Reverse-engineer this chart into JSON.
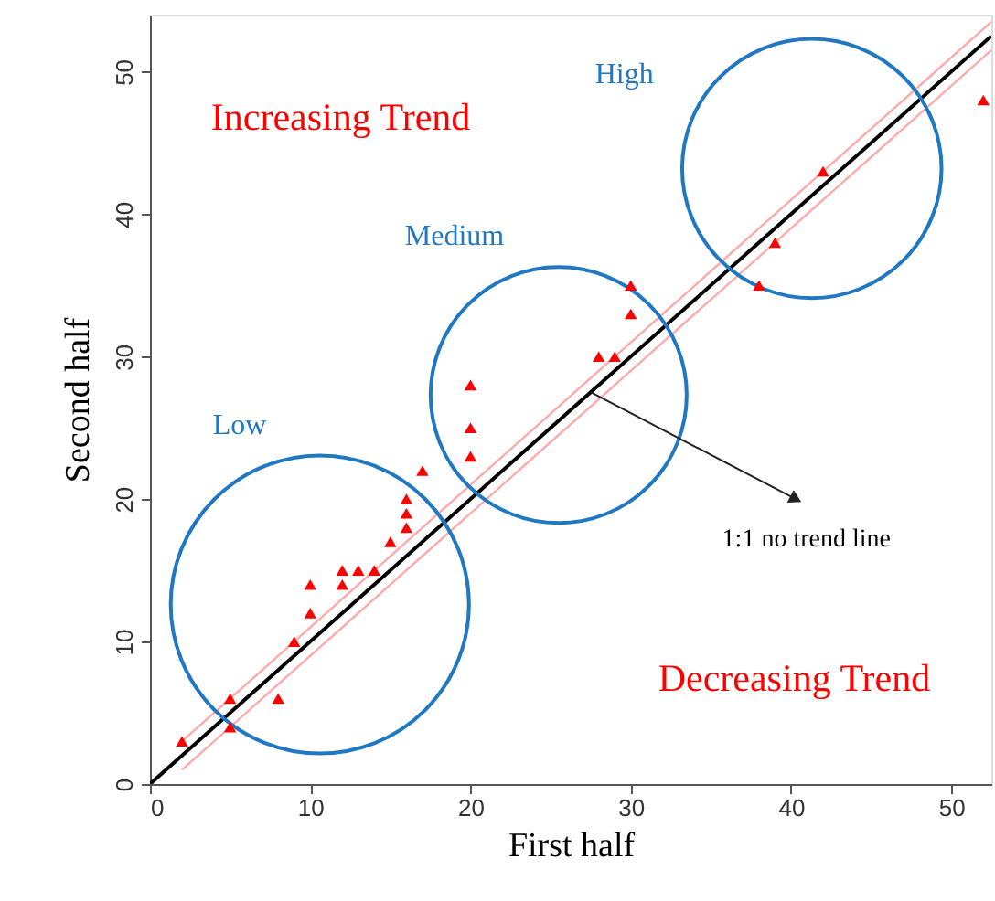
{
  "chart_data": {
    "type": "scatter",
    "xlabel": "First half",
    "ylabel": "Second half",
    "xlim": [
      0,
      52.5
    ],
    "ylim": [
      0,
      54
    ],
    "xticks": [
      0,
      10,
      20,
      30,
      40,
      50
    ],
    "yticks": [
      0,
      10,
      20,
      30,
      40,
      50
    ],
    "grid": false,
    "marker": "triangle",
    "series": [
      {
        "color": "#ff0000",
        "x": [
          2,
          5,
          5,
          8,
          9,
          10,
          10,
          12,
          12,
          13,
          14,
          15,
          16,
          16,
          16,
          17,
          20,
          20,
          20,
          28,
          29,
          30,
          30,
          38,
          39,
          42,
          52
        ],
        "values": [
          3,
          6,
          4,
          6,
          10,
          12,
          14,
          14,
          15,
          15,
          15,
          17,
          18,
          19,
          20,
          22,
          23,
          25,
          28,
          30,
          30,
          33,
          35,
          35,
          38,
          43,
          48
        ]
      },
      {
        "type": "line",
        "color": "#000000",
        "marker": "none",
        "line_style": "solid",
        "x": [
          0,
          52.5
        ],
        "values": [
          0,
          52.5
        ]
      },
      {
        "type": "line",
        "color": "#ffaaaa",
        "marker": "none",
        "line_style": "solid",
        "x": [
          2,
          52.5
        ],
        "values": [
          3,
          53.5
        ]
      },
      {
        "type": "line",
        "color": "#ffaaaa",
        "marker": "none",
        "line_style": "solid",
        "x": [
          2,
          52.5
        ],
        "values": [
          1,
          51.5
        ]
      }
    ],
    "annotations": [
      "Increasing Trend",
      "Decreasing Trend",
      "Low",
      "Medium",
      "High",
      "1:1 no trend line"
    ]
  }
}
